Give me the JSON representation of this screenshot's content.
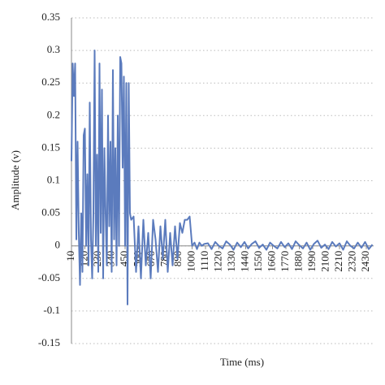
{
  "chart_data": {
    "type": "line",
    "xlabel": "Time (ms)",
    "ylabel": "Amplitude (v)",
    "x": [
      10,
      20,
      30,
      40,
      50,
      60,
      70,
      80,
      90,
      100,
      110,
      120,
      130,
      140,
      150,
      160,
      170,
      180,
      190,
      200,
      210,
      220,
      230,
      240,
      250,
      260,
      270,
      280,
      290,
      300,
      310,
      320,
      330,
      340,
      350,
      360,
      370,
      380,
      390,
      400,
      410,
      420,
      430,
      440,
      450,
      460,
      470,
      480,
      490,
      500,
      520,
      540,
      560,
      580,
      600,
      620,
      640,
      660,
      680,
      700,
      720,
      740,
      760,
      780,
      800,
      820,
      840,
      860,
      880,
      900,
      920,
      940,
      960,
      980,
      1000,
      1020,
      1040,
      1060,
      1080,
      1100,
      1130,
      1160,
      1190,
      1220,
      1250,
      1280,
      1310,
      1340,
      1370,
      1400,
      1430,
      1460,
      1490,
      1520,
      1550,
      1580,
      1610,
      1640,
      1670,
      1700,
      1730,
      1760,
      1790,
      1820,
      1850,
      1880,
      1910,
      1940,
      1970,
      2000,
      2030,
      2060,
      2090,
      2120,
      2150,
      2180,
      2210,
      2240,
      2270,
      2300,
      2330,
      2360,
      2390,
      2420,
      2450,
      2480
    ],
    "series": [
      {
        "name": "Amplitude",
        "color": "#5b7bbd",
        "values": [
          0.13,
          0.28,
          0.23,
          0.28,
          0.01,
          0.16,
          0.02,
          -0.06,
          0.05,
          -0.04,
          0.17,
          0.18,
          0.0,
          0.11,
          -0.03,
          0.22,
          0.01,
          -0.05,
          0.05,
          0.3,
          0.0,
          0.14,
          -0.04,
          0.28,
          0.02,
          0.24,
          -0.05,
          0.15,
          0.05,
          -0.03,
          0.2,
          0.03,
          0.16,
          -0.04,
          0.27,
          0.01,
          0.15,
          -0.03,
          0.2,
          0.0,
          0.29,
          0.28,
          0.12,
          0.26,
          0.0,
          0.25,
          -0.09,
          0.25,
          0.05,
          0.04,
          0.045,
          -0.04,
          0.03,
          -0.05,
          0.04,
          -0.03,
          0.02,
          -0.05,
          0.04,
          0.01,
          -0.04,
          0.03,
          -0.02,
          0.04,
          -0.04,
          0.02,
          -0.03,
          0.03,
          -0.02,
          0.035,
          0.02,
          0.04,
          0.04,
          0.045,
          0.0,
          0.005,
          -0.005,
          0.005,
          0.0,
          0.003,
          0.004,
          -0.005,
          0.006,
          0.0,
          -0.004,
          0.007,
          0.002,
          -0.006,
          0.005,
          -0.002,
          0.006,
          -0.004,
          0.003,
          0.007,
          -0.003,
          0.002,
          -0.006,
          0.005,
          0.0,
          -0.004,
          0.006,
          -0.002,
          0.004,
          -0.005,
          0.007,
          0.001,
          -0.004,
          0.005,
          -0.006,
          0.003,
          0.008,
          -0.003,
          0.002,
          -0.005,
          0.006,
          -0.001,
          0.004,
          -0.006,
          0.007,
          0.0,
          -0.004,
          0.005,
          -0.003,
          0.006,
          -0.005,
          0.002
        ]
      }
    ],
    "xlim": [
      10,
      2490
    ],
    "xticks": [
      10,
      120,
      230,
      340,
      450,
      560,
      670,
      780,
      890,
      1000,
      1110,
      1220,
      1330,
      1440,
      1550,
      1660,
      1770,
      1880,
      1990,
      2100,
      2210,
      2320,
      2430
    ],
    "ylim": [
      -0.15,
      0.35
    ],
    "yticks": [
      -0.15,
      -0.1,
      -0.05,
      0,
      0.05,
      0.1,
      0.15,
      0.2,
      0.25,
      0.3,
      0.35
    ],
    "grid": true
  }
}
